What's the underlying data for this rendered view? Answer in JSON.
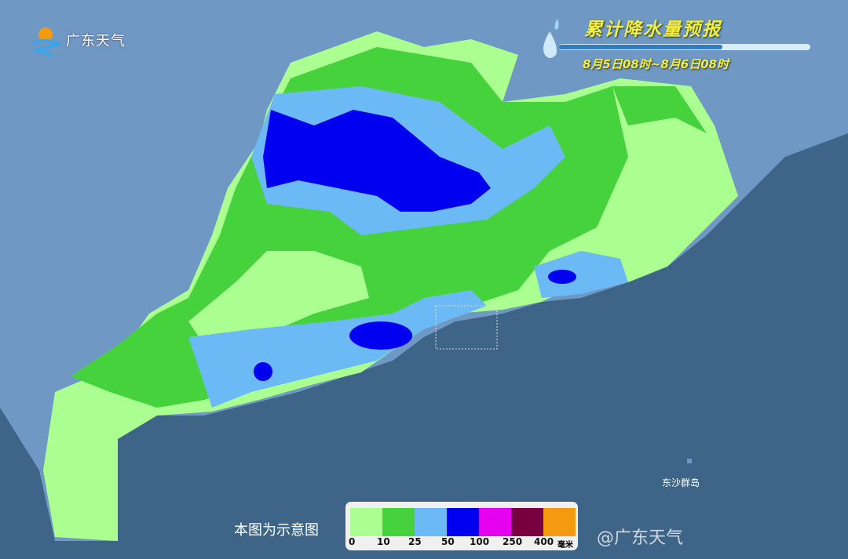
{
  "logo": {
    "text": "广东天气"
  },
  "header": {
    "title": "累计降水量预报",
    "period": "8月5日08时~8月6日08时"
  },
  "map": {
    "sea_color": "#3e6587",
    "land_color": "#6f98c4",
    "label_island": "东沙群岛",
    "note": "本图为示意图"
  },
  "legend": {
    "colors": [
      "#aaff90",
      "#46d23d",
      "#6bbaf5",
      "#0000f0",
      "#e600f0",
      "#780040",
      "#f39a10"
    ],
    "labels": [
      "0",
      "10",
      "25",
      "50",
      "100",
      "250",
      "400"
    ],
    "unit": "毫米"
  },
  "watermark": "@广东天气"
}
